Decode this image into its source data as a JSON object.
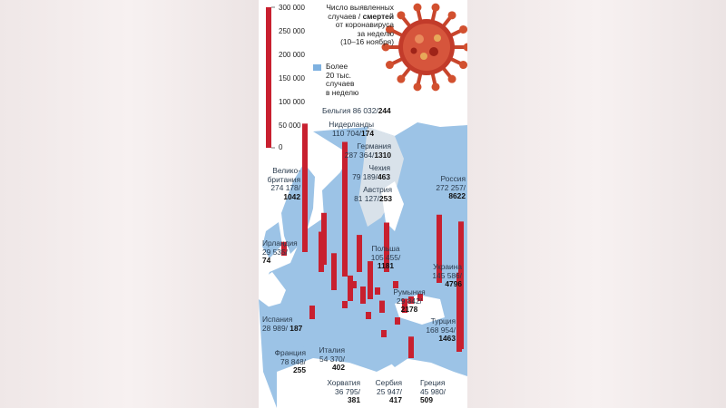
{
  "title": {
    "line1": "Число выявленных",
    "line2a": "случаев / ",
    "line2b": "смертей",
    "line3": "от коронавируса",
    "line4": "за неделю",
    "line5": "(10–16 ноября)"
  },
  "legend": {
    "l1": "Более",
    "l2": "20 тыс.",
    "l3": "случаев",
    "l4": "в неделю",
    "color": "#7eb1e0"
  },
  "scale": [
    "300 000",
    "250 000",
    "200 000",
    "150 000",
    "100 000",
    "50 000",
    "0"
  ],
  "colors": {
    "bar": "#c8202f",
    "water": "#ffffff",
    "land_hot": "#9cc3e6",
    "land": "#d9e2ea"
  },
  "countries": {
    "belgium": {
      "name": "Бельгия",
      "cases": "86 032/",
      "deaths": "244"
    },
    "netherlands": {
      "name": "Нидерланды",
      "cases": "110 704/",
      "deaths": "174"
    },
    "germany": {
      "name": "Германия",
      "cases": "287 364/",
      "deaths": "1310"
    },
    "czech": {
      "name": "Чехия",
      "cases": "79 189/",
      "deaths": "463"
    },
    "austria": {
      "name": "Австрия",
      "cases": "81 127/",
      "deaths": "253"
    },
    "uk": {
      "name1": "Велико-",
      "name2": "британия",
      "cases": "274 178/",
      "deaths": "1042"
    },
    "russia": {
      "name": "Россия",
      "cases": "272 257/",
      "deaths": "8622"
    },
    "ireland": {
      "name": "Ирландия",
      "cases": "29 535/",
      "deaths": "74"
    },
    "poland": {
      "name": "Польша",
      "cases": "105 455/",
      "deaths": "1181"
    },
    "ukraine": {
      "name": "Украина",
      "cases": "145 586/",
      "deaths": "4796"
    },
    "romania": {
      "name": "Румыния",
      "cases": "29 842/",
      "deaths": "2178"
    },
    "spain": {
      "name": "Испания",
      "cases": "28 989/",
      "deaths": "187"
    },
    "turkey": {
      "name": "Турция",
      "cases": "168 954/",
      "deaths": "1463"
    },
    "france": {
      "name": "Франция",
      "cases": "78 848/",
      "deaths": "255"
    },
    "italy": {
      "name": "Италия",
      "cases": "54 370/",
      "deaths": "402"
    },
    "croatia": {
      "name": "Хорватия",
      "cases": "36 795/",
      "deaths": "381"
    },
    "serbia": {
      "name": "Сербия",
      "cases": "25 947/",
      "deaths": "417"
    },
    "greece": {
      "name": "Греция",
      "cases": "45 980/",
      "deaths": "509"
    }
  }
}
